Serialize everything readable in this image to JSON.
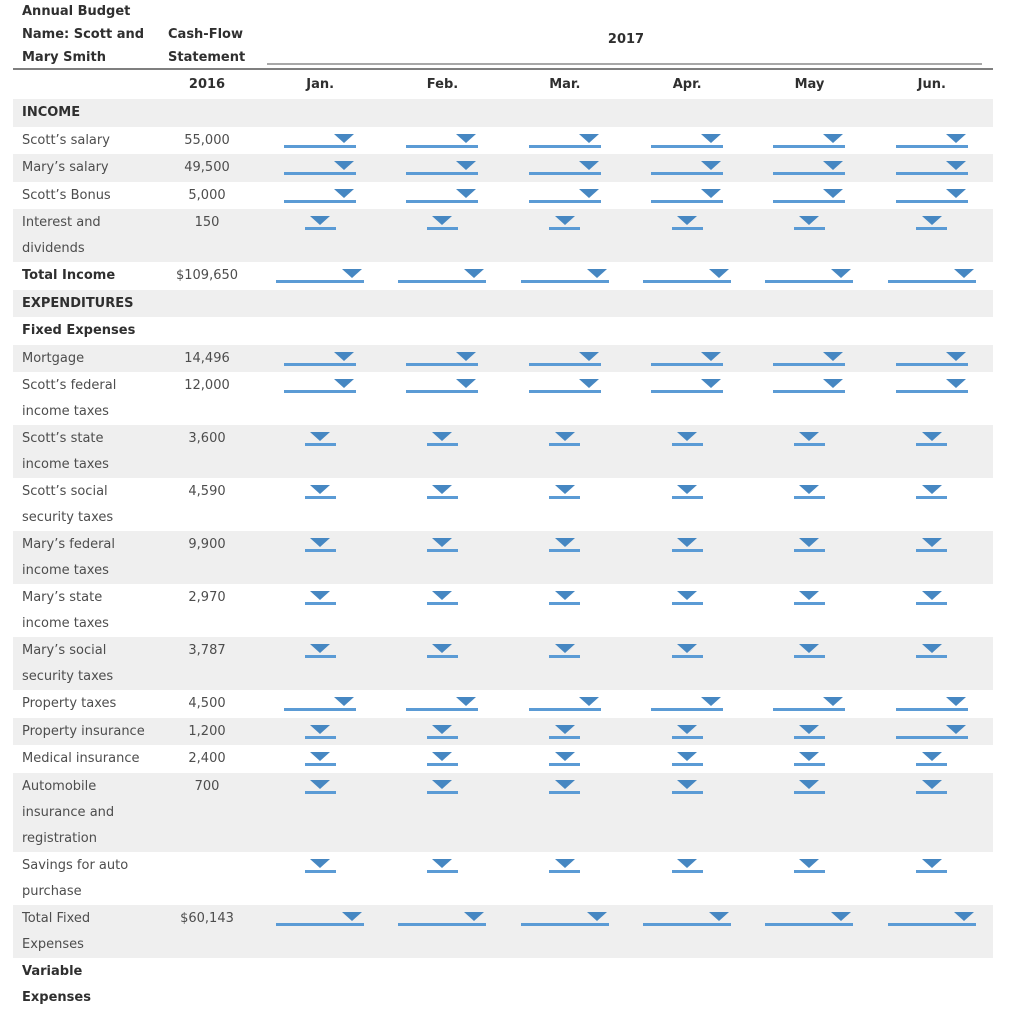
{
  "header": {
    "title": "Annual Budget",
    "name": "Name: Scott and\nMary Smith",
    "statement": "Cash-Flow\nStatement",
    "year": "2017",
    "base_year": "2016",
    "months": [
      "Jan.",
      "Feb.",
      "Mar.",
      "Apr.",
      "May",
      "Jun."
    ]
  },
  "colors": {
    "dropdown_arrow": "#4687c2",
    "dropdown_underline": "#5b9bd5",
    "row_shade": "#efefef",
    "header_rule": "#7f7f7f",
    "year_rule": "#a8a8a8"
  },
  "rows": [
    {
      "kind": "section",
      "label": "INCOME"
    },
    {
      "kind": "data",
      "label": "Scott’s salary",
      "value": "55,000",
      "dd": "medium"
    },
    {
      "kind": "data",
      "label": "Mary’s salary",
      "value": "49,500",
      "dd": "medium"
    },
    {
      "kind": "data",
      "label": "Scott’s Bonus",
      "value": "5,000",
      "dd": "medium"
    },
    {
      "kind": "data",
      "label": "Interest and\ndividends",
      "value": "150",
      "dd": "narrow"
    },
    {
      "kind": "data",
      "label": "Total Income",
      "value": "$109,650",
      "dd": "wide",
      "bold": true
    },
    {
      "kind": "section",
      "label": "EXPENDITURES"
    },
    {
      "kind": "section",
      "label": "Fixed Expenses"
    },
    {
      "kind": "data",
      "label": "Mortgage",
      "value": "14,496",
      "dd": "medium"
    },
    {
      "kind": "data",
      "label": "Scott’s federal\nincome taxes",
      "value": "12,000",
      "dd": "medium"
    },
    {
      "kind": "data",
      "label": "Scott’s state\nincome taxes",
      "value": "3,600",
      "dd": "narrow"
    },
    {
      "kind": "data",
      "label": "Scott’s social\nsecurity taxes",
      "value": "4,590",
      "dd": "narrow"
    },
    {
      "kind": "data",
      "label": "Mary’s federal\nincome taxes",
      "value": "9,900",
      "dd": "narrow"
    },
    {
      "kind": "data",
      "label": "Mary’s state\nincome taxes",
      "value": "2,970",
      "dd": "narrow"
    },
    {
      "kind": "data",
      "label": "Mary’s social\nsecurity taxes",
      "value": "3,787",
      "dd": "narrow"
    },
    {
      "kind": "data",
      "label": "Property taxes",
      "value": "4,500",
      "dd": "medium"
    },
    {
      "kind": "data",
      "label": "Property insurance",
      "value": "1,200",
      "dd": "narrow",
      "dd_overrides": {
        "5": "medium"
      }
    },
    {
      "kind": "data",
      "label": "Medical insurance",
      "value": "2,400",
      "dd": "narrow"
    },
    {
      "kind": "data",
      "label": "Automobile\ninsurance and\nregistration",
      "value": "700",
      "dd": "narrow"
    },
    {
      "kind": "data",
      "label": "Savings for auto\npurchase",
      "value": "",
      "dd": "narrow"
    },
    {
      "kind": "data",
      "label": "Total Fixed\nExpenses",
      "value": "$60,143",
      "dd": "wide"
    },
    {
      "kind": "section",
      "label": "Variable\nExpenses"
    }
  ]
}
